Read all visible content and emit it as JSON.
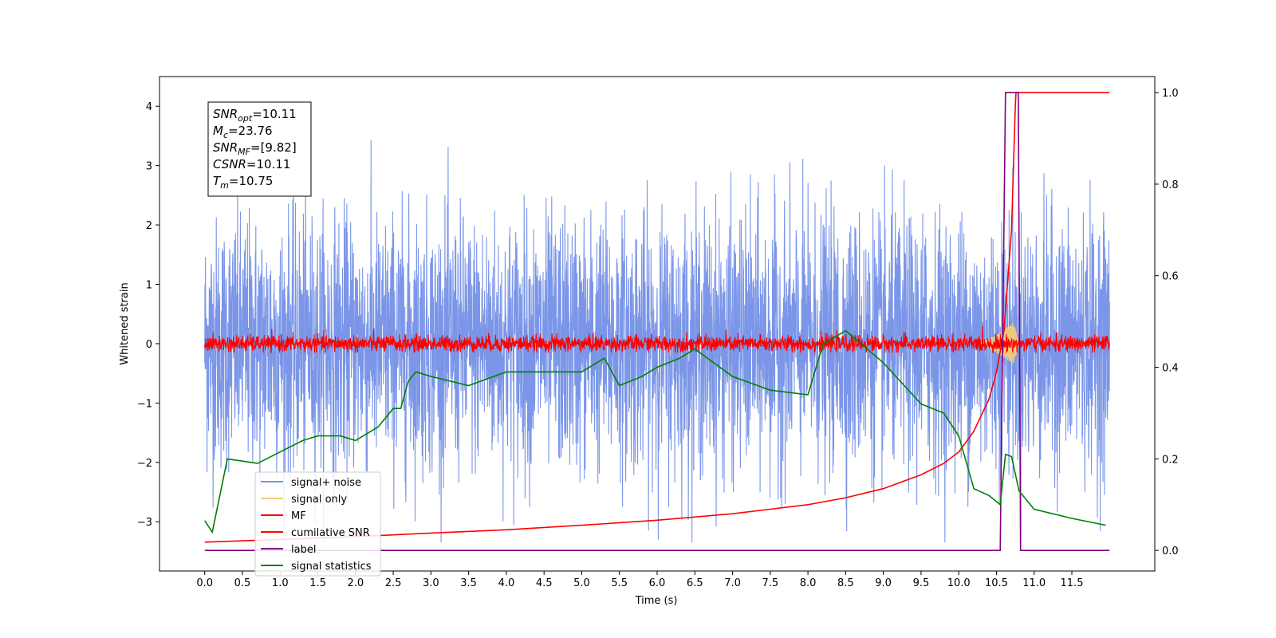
{
  "chart_data": {
    "type": "line",
    "xlabel": "Time (s)",
    "ylabel": "Whitened strain",
    "xlim": [
      -0.6,
      12.6
    ],
    "ylim": [
      -3.83,
      4.5
    ],
    "y2lim": [
      -0.045,
      1.035
    ],
    "x_ticks": [
      "0.0",
      "0.5",
      "1.0",
      "1.5",
      "2.0",
      "2.5",
      "3.0",
      "3.5",
      "4.0",
      "4.5",
      "5.0",
      "5.5",
      "6.0",
      "6.5",
      "7.0",
      "7.5",
      "8.0",
      "8.5",
      "9.0",
      "9.5",
      "10.0",
      "10.5",
      "11.0",
      "11.5"
    ],
    "y_ticks": [
      "4",
      "3",
      "2",
      "1",
      "0",
      "−1",
      "−2",
      "−3"
    ],
    "y2_ticks": [
      "1.0",
      "0.8",
      "0.6",
      "0.4",
      "0.2",
      "0.0"
    ],
    "info_box": [
      {
        "main": "SNR",
        "sub": "opt",
        "rest": "=10.11"
      },
      {
        "main": "M",
        "sub": "c",
        "rest": "=23.76"
      },
      {
        "main": "SNR",
        "sub": "MF",
        "rest": "=[9.82]"
      },
      {
        "main": "CSNR",
        "sub": "",
        "rest": "=10.11"
      },
      {
        "main": "T",
        "sub": "m",
        "rest": "=10.75"
      }
    ],
    "legend": {
      "location": "lower-left",
      "entries": [
        {
          "label": "signal+ noise",
          "color": "#7b96e8"
        },
        {
          "label": "signal only",
          "color": "#f5cf73"
        },
        {
          "label": "MF",
          "color": "#ff0000"
        },
        {
          "label": "cumilative SNR",
          "color": "#ff0000"
        },
        {
          "label": "label",
          "color": "#800080"
        },
        {
          "label": "signal statistics",
          "color": "#008000"
        }
      ]
    },
    "series": [
      {
        "name": "signal+ noise",
        "axis": "left",
        "color": "#7b96e8",
        "description": "dense gaussian noise, approx range -3.4 to 4.2 around 0",
        "x_range": [
          0,
          12.0
        ]
      },
      {
        "name": "signal only",
        "axis": "left",
        "color": "#f5cf73",
        "description": "chirp growing near merger",
        "x_range": [
          10.2,
          10.8
        ],
        "peak_amplitude": 0.45
      },
      {
        "name": "MF",
        "axis": "left",
        "color": "#ff0000",
        "description": "matched-filter output, approx range -0.15 to 0.35 around 0",
        "x_range": [
          0,
          12.0
        ]
      },
      {
        "name": "cumilative SNR",
        "axis": "right",
        "color": "#ff0000",
        "x": [
          0.0,
          1.0,
          2.0,
          3.0,
          4.0,
          5.0,
          6.0,
          7.0,
          7.5,
          8.0,
          8.5,
          9.0,
          9.5,
          9.8,
          10.0,
          10.2,
          10.4,
          10.5,
          10.6,
          10.7,
          10.75,
          10.76,
          12.0
        ],
        "y": [
          0.018,
          0.024,
          0.03,
          0.038,
          0.045,
          0.055,
          0.066,
          0.08,
          0.09,
          0.1,
          0.115,
          0.135,
          0.165,
          0.19,
          0.215,
          0.26,
          0.33,
          0.39,
          0.48,
          0.7,
          0.97,
          1.0,
          1.0
        ]
      },
      {
        "name": "label",
        "axis": "right",
        "color": "#800080",
        "x": [
          0.0,
          10.55,
          10.62,
          10.77,
          10.79,
          10.82,
          12.0
        ],
        "y": [
          0.0,
          0.0,
          1.0,
          1.0,
          1.0,
          0.0,
          0.0
        ]
      },
      {
        "name": "signal statistics",
        "axis": "right",
        "color": "#008000",
        "x": [
          0.0,
          0.1,
          0.3,
          0.5,
          0.7,
          1.0,
          1.3,
          1.5,
          1.8,
          2.0,
          2.3,
          2.5,
          2.6,
          2.7,
          2.8,
          3.0,
          3.5,
          4.0,
          4.5,
          5.0,
          5.3,
          5.5,
          5.8,
          6.0,
          6.3,
          6.5,
          7.0,
          7.5,
          8.0,
          8.2,
          8.5,
          9.0,
          9.5,
          9.8,
          10.0,
          10.2,
          10.4,
          10.55,
          10.62,
          10.7,
          10.8,
          11.0,
          11.5,
          11.95
        ],
        "y": [
          0.065,
          0.04,
          0.2,
          0.195,
          0.19,
          0.215,
          0.24,
          0.25,
          0.25,
          0.24,
          0.27,
          0.31,
          0.31,
          0.37,
          0.39,
          0.38,
          0.36,
          0.39,
          0.39,
          0.39,
          0.42,
          0.36,
          0.38,
          0.4,
          0.42,
          0.44,
          0.38,
          0.35,
          0.34,
          0.45,
          0.48,
          0.41,
          0.32,
          0.3,
          0.25,
          0.135,
          0.12,
          0.1,
          0.21,
          0.205,
          0.13,
          0.09,
          0.07,
          0.055
        ]
      }
    ]
  }
}
